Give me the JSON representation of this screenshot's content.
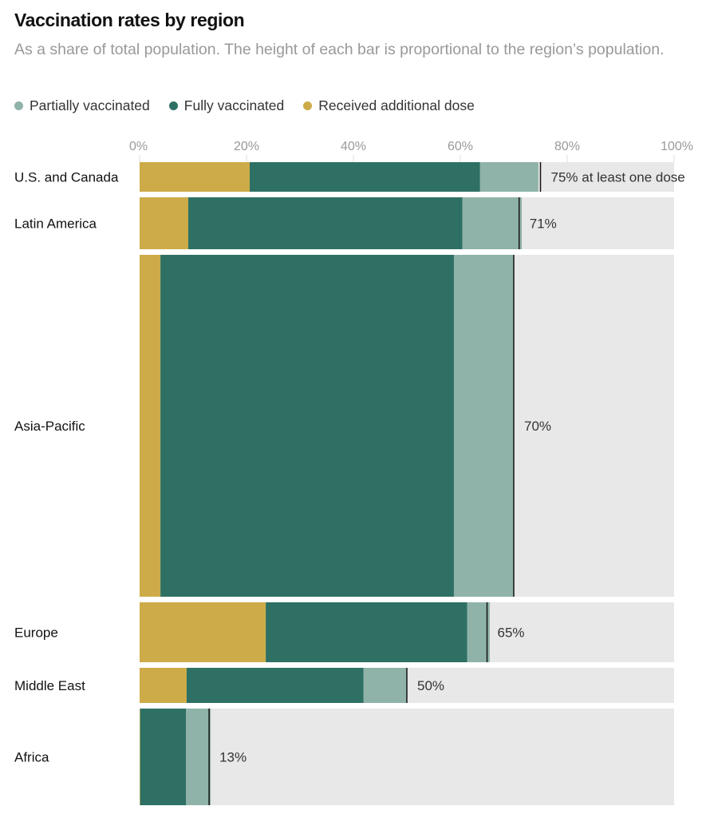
{
  "chart_data": {
    "type": "bar",
    "orientation": "horizontal",
    "stacked": true,
    "title": "Vaccination rates by region",
    "subtitle": "As a share of total population. The height of each bar is proportional to the region’s population.",
    "xlabel": "",
    "ylabel": "",
    "xlim": [
      0,
      100
    ],
    "x_ticks": [
      "0%",
      "20%",
      "40%",
      "60%",
      "80%",
      "100%"
    ],
    "x_tick_values": [
      0,
      20,
      40,
      60,
      80,
      100
    ],
    "legend_position": "top-left",
    "legend": [
      {
        "name": "Partially vaccinated",
        "color": "#8fb3a9"
      },
      {
        "name": "Fully vaccinated",
        "color": "#2e7064"
      },
      {
        "name": "Received additional dose",
        "color": "#cdab48"
      }
    ],
    "background_color": "#e8e8e8",
    "categories": [
      "U.S. and Canada",
      "Latin America",
      "Asia-Pacific",
      "Europe",
      "Middle East",
      "Africa"
    ],
    "population_weight": [
      37,
      65,
      428,
      75,
      44,
      121
    ],
    "series": [
      {
        "name": "Received additional dose",
        "color": "#cdab48",
        "values": [
          20.6,
          9.1,
          3.9,
          23.6,
          8.8,
          0.1
        ]
      },
      {
        "name": "Fully vaccinated",
        "color": "#2e7064",
        "values": [
          43.1,
          51.3,
          54.9,
          37.7,
          33.1,
          8.6
        ]
      },
      {
        "name": "Partially vaccinated",
        "color": "#8fb3a9",
        "values": [
          10.9,
          11.1,
          11.2,
          4.2,
          8.1,
          4.6
        ]
      }
    ],
    "at_least_one_dose": [
      75,
      71,
      70,
      65,
      50,
      13
    ],
    "value_labels": [
      "75% at least one dose",
      "71%",
      "70%",
      "65%",
      "50%",
      "13%"
    ]
  }
}
